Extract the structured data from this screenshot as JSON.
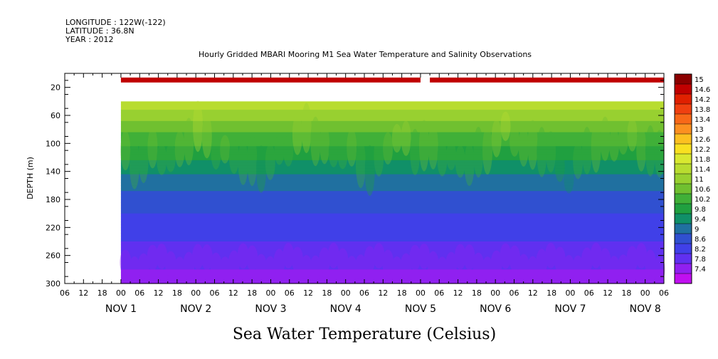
{
  "header": {
    "longitude": "LONGITUDE : 122W(-122)",
    "latitude": "LATITUDE : 36.8N",
    "year": "YEAR : 2012"
  },
  "chart_data": {
    "type": "heatmap",
    "title": "Hourly Gridded MBARI Mooring M1 Sea Water Temperature and Salinity Observations",
    "variable_label": "Sea Water Temperature (Celsius)",
    "ylabel": "DEPTH (m)",
    "ylim": [
      300,
      0
    ],
    "y_ticks": [
      20,
      60,
      100,
      140,
      180,
      220,
      260,
      300
    ],
    "x_ticks": [
      "06",
      "12",
      "18",
      "00",
      "06",
      "12",
      "18",
      "00",
      "06",
      "12",
      "18",
      "00",
      "06",
      "12",
      "18",
      "00",
      "06",
      "12",
      "18",
      "00",
      "06",
      "12",
      "18",
      "00",
      "06",
      "12",
      "18",
      "00",
      "06",
      "12",
      "18",
      "00",
      "06"
    ],
    "x_start_hour_offset": 6,
    "x_hours_total": 192,
    "day_labels": [
      {
        "hour": 24,
        "text": "NOV  1"
      },
      {
        "hour": 48,
        "text": "NOV  2"
      },
      {
        "hour": 72,
        "text": "NOV  3"
      },
      {
        "hour": 96,
        "text": "NOV  4"
      },
      {
        "hour": 120,
        "text": "NOV  5"
      },
      {
        "hour": 144,
        "text": "NOV  6"
      },
      {
        "hour": 168,
        "text": "NOV  7"
      },
      {
        "hour": 192,
        "text": "NOV  8"
      }
    ],
    "data_start_hour": 18,
    "surface_band": {
      "depth_top": 8,
      "depth_bottom": 12,
      "value": 14.6,
      "gap_hours": [
        114,
        117
      ]
    },
    "profile": {
      "depths": [
        40,
        60,
        80,
        100,
        120,
        140,
        160,
        180,
        200,
        220,
        240,
        260,
        280,
        300
      ],
      "temperatures": [
        11.7,
        11.2,
        10.7,
        10.3,
        9.9,
        9.5,
        9.1,
        8.8,
        8.6,
        8.4,
        8.2,
        8.0,
        7.8,
        7.6
      ]
    },
    "colorbar": {
      "levels": [
        "15",
        "14.6",
        "14.2",
        "13.8",
        "13.4",
        "13",
        "12.6",
        "12.2",
        "11.8",
        "11.4",
        "11",
        "10.6",
        "10.2",
        "9.8",
        "9.4",
        "9",
        "8.6",
        "8.2",
        "7.8",
        "7.4"
      ],
      "colors": [
        "#8b0000",
        "#c00000",
        "#e02000",
        "#f04010",
        "#f86818",
        "#fc9020",
        "#fcc020",
        "#f8e020",
        "#d8e830",
        "#b8dc30",
        "#98d030",
        "#70c030",
        "#40b038",
        "#20a040",
        "#109068",
        "#2070a0",
        "#3050d0",
        "#4040e8",
        "#6030f0",
        "#9020f0",
        "#c010f0"
      ]
    }
  }
}
